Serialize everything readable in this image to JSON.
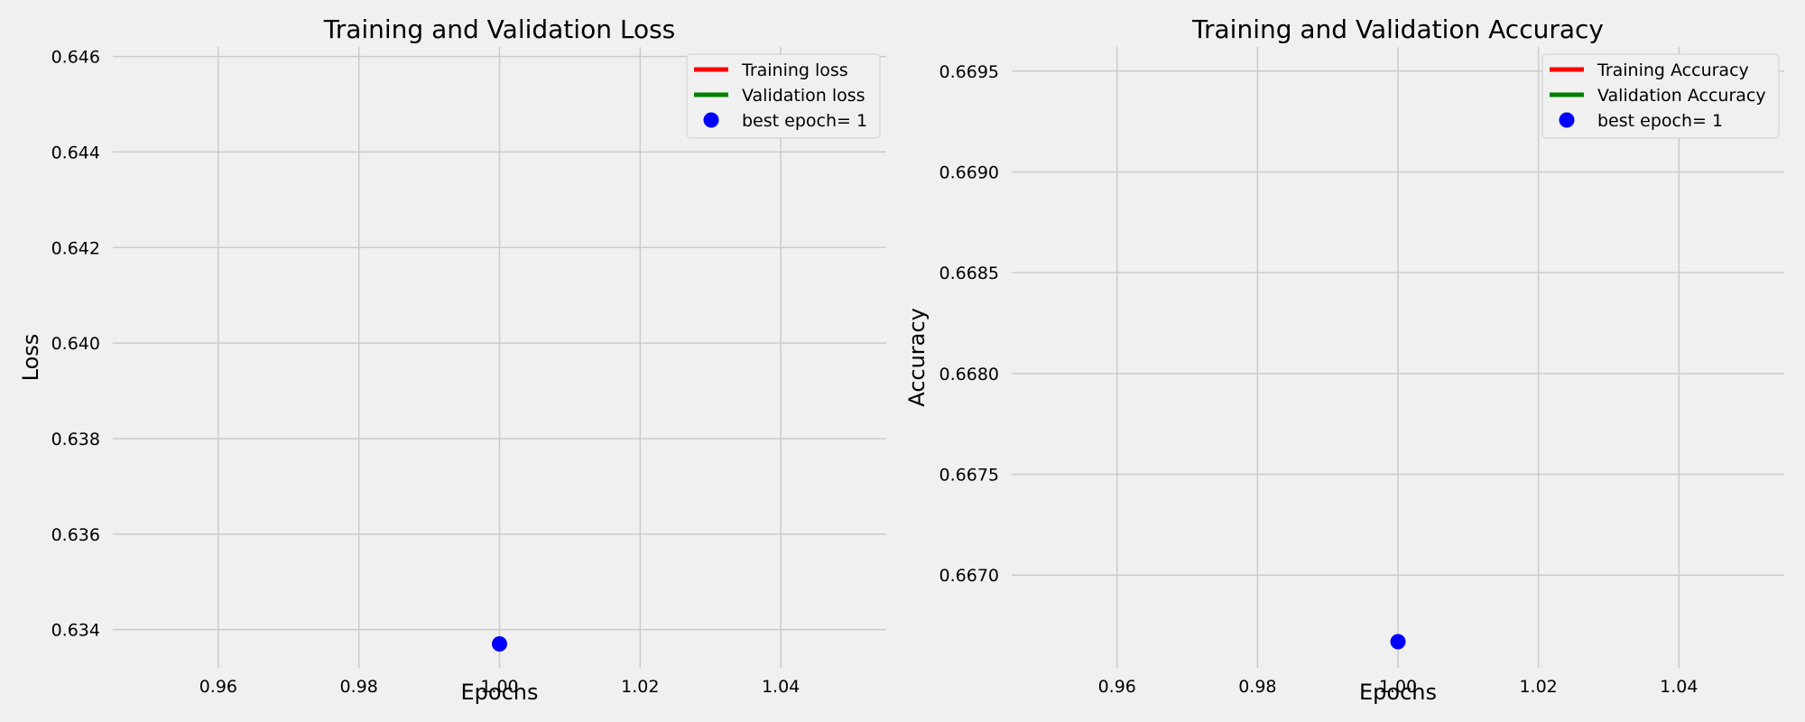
{
  "style": {
    "background": "#f0f0f0",
    "grid_color": "#cbcbcb",
    "legend_bg": "#f0f0f0",
    "legend_border": "#d0d0d0"
  },
  "chart_data": [
    {
      "type": "line",
      "title": "Training and Validation Loss",
      "xlabel": "Epochs",
      "ylabel": "Loss",
      "xlim": [
        0.945,
        1.055
      ],
      "ylim": [
        0.6332,
        0.6462
      ],
      "xticks": [
        0.96,
        0.98,
        1.0,
        1.02,
        1.04
      ],
      "xtick_labels": [
        "0.96",
        "0.98",
        "1.00",
        "1.02",
        "1.04"
      ],
      "yticks": [
        0.634,
        0.636,
        0.638,
        0.64,
        0.642,
        0.644,
        0.646
      ],
      "ytick_labels": [
        "0.634",
        "0.636",
        "0.638",
        "0.640",
        "0.642",
        "0.644",
        "0.646"
      ],
      "grid": true,
      "legend_position": "top-right",
      "series": [
        {
          "name": "Training loss",
          "kind": "line",
          "color": "#ff0000",
          "x": [
            1
          ],
          "y": [
            0.6337
          ]
        },
        {
          "name": "Validation loss",
          "kind": "line",
          "color": "#008000",
          "x": [
            1
          ],
          "y": [
            0.6337
          ]
        },
        {
          "name": "best epoch= 1",
          "kind": "scatter",
          "color": "#0000ff",
          "x": [
            1
          ],
          "y": [
            0.6337
          ]
        }
      ]
    },
    {
      "type": "line",
      "title": "Training and Validation Accuracy",
      "xlabel": "Epochs",
      "ylabel": "Accuracy",
      "xlim": [
        0.945,
        1.055
      ],
      "ylim": [
        0.66654,
        0.66962
      ],
      "xticks": [
        0.96,
        0.98,
        1.0,
        1.02,
        1.04
      ],
      "xtick_labels": [
        "0.96",
        "0.98",
        "1.00",
        "1.02",
        "1.04"
      ],
      "yticks": [
        0.667,
        0.6675,
        0.668,
        0.6685,
        0.669,
        0.6695
      ],
      "ytick_labels": [
        "0.6670",
        "0.6675",
        "0.6680",
        "0.6685",
        "0.6690",
        "0.6695"
      ],
      "grid": true,
      "legend_position": "top-right",
      "series": [
        {
          "name": "Training Accuracy",
          "kind": "line",
          "color": "#ff0000",
          "x": [
            1
          ],
          "y": [
            0.66667
          ]
        },
        {
          "name": "Validation Accuracy",
          "kind": "line",
          "color": "#008000",
          "x": [
            1
          ],
          "y": [
            0.66667
          ]
        },
        {
          "name": "best epoch= 1",
          "kind": "scatter",
          "color": "#0000ff",
          "x": [
            1
          ],
          "y": [
            0.66667
          ]
        }
      ]
    }
  ]
}
